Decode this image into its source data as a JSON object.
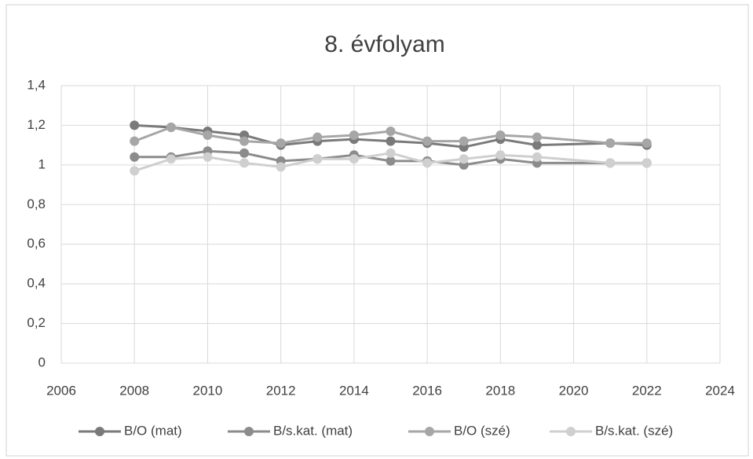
{
  "chart_data": {
    "type": "line",
    "title": "8. évfolyam",
    "x": [
      2008,
      2009,
      2010,
      2011,
      2012,
      2013,
      2014,
      2015,
      2016,
      2017,
      2018,
      2019,
      2021,
      2022
    ],
    "series": [
      {
        "name": "B/O (mat)",
        "color": "#7a7a7a",
        "values": [
          1.2,
          1.19,
          1.17,
          1.15,
          1.1,
          1.12,
          1.13,
          1.12,
          1.11,
          1.09,
          1.13,
          1.1,
          1.11,
          1.1
        ]
      },
      {
        "name": "B/s.kat. (mat)",
        "color": "#8c8c8c",
        "values": [
          1.04,
          1.04,
          1.07,
          1.06,
          1.02,
          1.03,
          1.05,
          1.02,
          1.02,
          1.0,
          1.03,
          1.01,
          1.01,
          1.01
        ]
      },
      {
        "name": "B/O (szé)",
        "color": "#a6a6a6",
        "values": [
          1.12,
          1.19,
          1.15,
          1.12,
          1.11,
          1.14,
          1.15,
          1.17,
          1.12,
          1.12,
          1.15,
          1.14,
          1.11,
          1.11
        ]
      },
      {
        "name": "B/s.kat. (szé)",
        "color": "#cfcfcf",
        "values": [
          0.97,
          1.03,
          1.04,
          1.01,
          0.99,
          1.03,
          1.03,
          1.06,
          1.01,
          1.03,
          1.05,
          1.04,
          1.01,
          1.01
        ]
      }
    ],
    "xlim": [
      2006,
      2024
    ],
    "xticks": [
      2006,
      2008,
      2010,
      2012,
      2014,
      2016,
      2018,
      2020,
      2022,
      2024
    ],
    "ylim": [
      0,
      1.4
    ],
    "yticks": [
      0,
      {
        "value": 0.2,
        "label": "0,2"
      },
      {
        "value": 0.4,
        "label": "0,4"
      },
      {
        "value": 0.6,
        "label": "0,6"
      },
      {
        "value": 0.8,
        "label": "0,8"
      },
      1,
      {
        "value": 1.2,
        "label": "1,2"
      },
      {
        "value": 1.4,
        "label": "1,4"
      }
    ],
    "grid": true,
    "legend": "bottom"
  }
}
